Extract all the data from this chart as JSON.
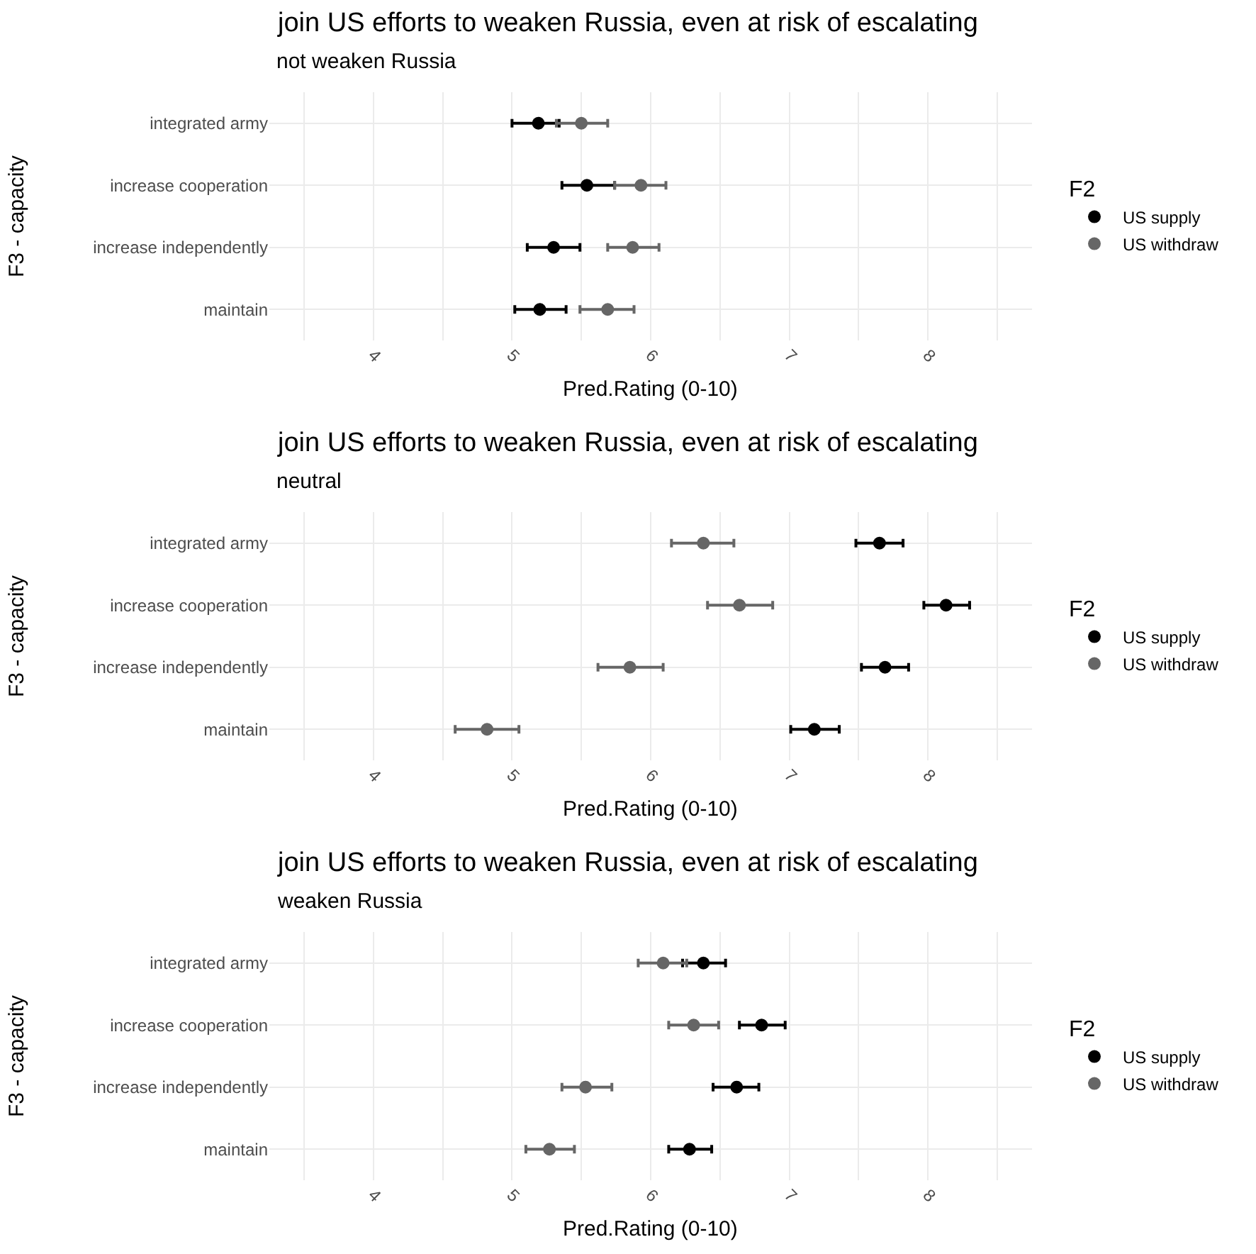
{
  "chart_data": [
    {
      "type": "scatter",
      "orientation": "horizontal",
      "title": "join US efforts to weaken Russia, even at risk of escalating",
      "subtitle": "not weaken Russia",
      "xlabel": "Pred.Rating (0-10)",
      "ylabel": "F3 - capacity",
      "legend_title": "F2",
      "legend": "right",
      "grid": true,
      "marker": "circle",
      "categories": [
        "integrated army",
        "increase cooperation",
        "increase independently",
        "maintain"
      ],
      "xlim": [
        3.25,
        8.75
      ],
      "xticks": [
        {
          "value": 3.5,
          "label": null
        },
        4,
        {
          "value": 4.5,
          "label": null
        },
        5,
        {
          "value": 5.5,
          "label": null
        },
        6,
        {
          "value": 6.5,
          "label": null
        },
        7,
        {
          "value": 7.5,
          "label": null
        },
        8,
        {
          "value": 8.5,
          "label": null
        }
      ],
      "series": [
        {
          "name": "US supply",
          "color": "#000000",
          "values": [
            5.19,
            5.54,
            5.3,
            5.2
          ],
          "errors": [
            [
              5.0,
              5.34
            ],
            [
              5.36,
              5.74
            ],
            [
              5.11,
              5.49
            ],
            [
              5.02,
              5.39
            ]
          ]
        },
        {
          "name": "US withdraw",
          "color": "#666666",
          "values": [
            5.5,
            5.93,
            5.87,
            5.69
          ],
          "errors": [
            [
              5.32,
              5.69
            ],
            [
              5.74,
              6.11
            ],
            [
              5.69,
              6.06
            ],
            [
              5.49,
              5.88
            ]
          ]
        }
      ]
    },
    {
      "type": "scatter",
      "orientation": "horizontal",
      "title": "join US efforts to weaken Russia, even at risk of escalating",
      "subtitle": "neutral",
      "xlabel": "Pred.Rating (0-10)",
      "ylabel": "F3 - capacity",
      "legend_title": "F2",
      "legend": "right",
      "grid": true,
      "marker": "circle",
      "categories": [
        "integrated army",
        "increase cooperation",
        "increase independently",
        "maintain"
      ],
      "xlim": [
        3.25,
        8.75
      ],
      "xticks": [
        {
          "value": 3.5,
          "label": null
        },
        4,
        {
          "value": 4.5,
          "label": null
        },
        5,
        {
          "value": 5.5,
          "label": null
        },
        6,
        {
          "value": 6.5,
          "label": null
        },
        7,
        {
          "value": 7.5,
          "label": null
        },
        8,
        {
          "value": 8.5,
          "label": null
        }
      ],
      "series": [
        {
          "name": "US supply",
          "color": "#000000",
          "values": [
            7.65,
            8.13,
            7.69,
            7.18
          ],
          "errors": [
            [
              7.48,
              7.82
            ],
            [
              7.97,
              8.3
            ],
            [
              7.52,
              7.86
            ],
            [
              7.01,
              7.36
            ]
          ]
        },
        {
          "name": "US withdraw",
          "color": "#666666",
          "values": [
            6.38,
            6.64,
            5.85,
            4.82
          ],
          "errors": [
            [
              6.15,
              6.6
            ],
            [
              6.41,
              6.88
            ],
            [
              5.62,
              6.09
            ],
            [
              4.59,
              5.05
            ]
          ]
        }
      ]
    },
    {
      "type": "scatter",
      "orientation": "horizontal",
      "title": "join US efforts to weaken Russia, even at risk of escalating",
      "subtitle": "weaken Russia",
      "xlabel": "Pred.Rating (0-10)",
      "ylabel": "F3 - capacity",
      "legend_title": "F2",
      "legend": "right",
      "grid": true,
      "marker": "circle",
      "categories": [
        "integrated army",
        "increase cooperation",
        "increase independently",
        "maintain"
      ],
      "xlim": [
        3.25,
        8.75
      ],
      "xticks": [
        {
          "value": 3.5,
          "label": null
        },
        4,
        {
          "value": 4.5,
          "label": null
        },
        5,
        {
          "value": 5.5,
          "label": null
        },
        6,
        {
          "value": 6.5,
          "label": null
        },
        7,
        {
          "value": 7.5,
          "label": null
        },
        8,
        {
          "value": 8.5,
          "label": null
        }
      ],
      "series": [
        {
          "name": "US supply",
          "color": "#000000",
          "values": [
            6.38,
            6.8,
            6.62,
            6.28
          ],
          "errors": [
            [
              6.23,
              6.54
            ],
            [
              6.64,
              6.97
            ],
            [
              6.45,
              6.78
            ],
            [
              6.13,
              6.44
            ]
          ]
        },
        {
          "name": "US withdraw",
          "color": "#666666",
          "values": [
            6.09,
            6.31,
            5.53,
            5.27
          ],
          "errors": [
            [
              5.91,
              6.26
            ],
            [
              6.13,
              6.49
            ],
            [
              5.36,
              5.72
            ],
            [
              5.1,
              5.45
            ]
          ]
        }
      ]
    }
  ]
}
